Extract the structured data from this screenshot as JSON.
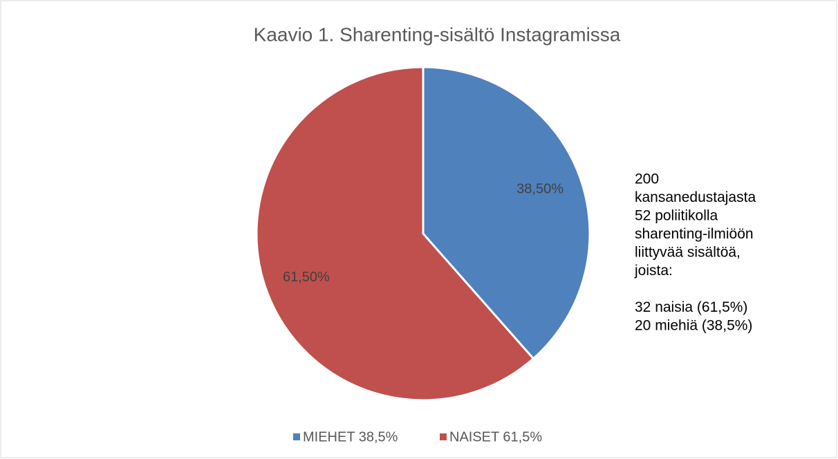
{
  "chart_data": {
    "type": "pie",
    "title": "Kaavio 1. Sharenting-sisältö Instagramissa",
    "categories": [
      "MIEHET 38,5%",
      "NAISET 61,5%"
    ],
    "values": [
      38.5,
      61.5
    ],
    "value_labels": [
      "38,50%",
      "61,50%"
    ],
    "colors": [
      "#4f81bd",
      "#c0504d"
    ],
    "legend": "bottom",
    "annotation": [
      [
        "200",
        "kansanedustajasta",
        "52 poliitikolla",
        "sharenting-ilmiöön",
        "liittyvää sisältöä,",
        "joista:"
      ],
      [
        "32 naisia (61,5%)",
        "20 miehiä (38,5%)"
      ]
    ]
  }
}
